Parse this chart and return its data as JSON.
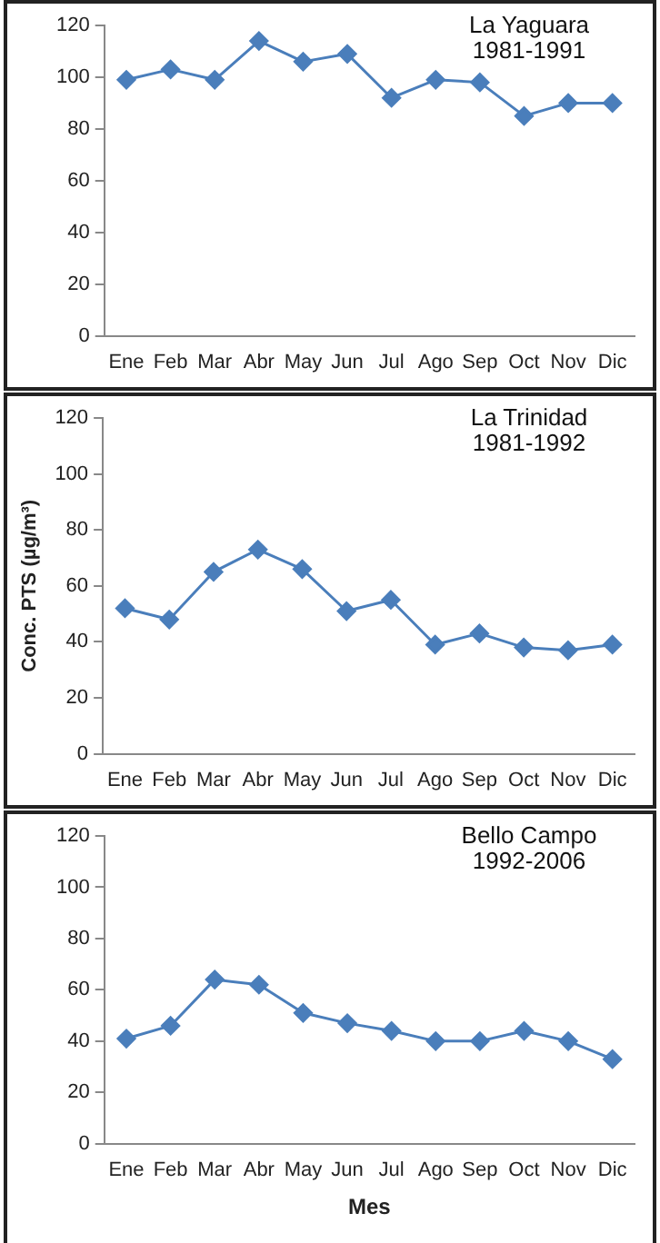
{
  "chart_data": [
    {
      "type": "line",
      "categories": [
        "Ene",
        "Feb",
        "Mar",
        "Abr",
        "May",
        "Jun",
        "Jul",
        "Ago",
        "Sep",
        "Oct",
        "Nov",
        "Dic"
      ],
      "series": [
        {
          "color": "#4a7ebb",
          "values": [
            99,
            103,
            99,
            114,
            106,
            109,
            92,
            99,
            98,
            85,
            90,
            90
          ]
        }
      ],
      "ylim": [
        0,
        120
      ],
      "yticks": [
        0,
        20,
        40,
        60,
        80,
        100,
        120
      ],
      "grid": false,
      "legend": false,
      "marker": "diamond",
      "line_style": "solid",
      "annotations": [
        "La Yaguara",
        "1981-1991"
      ]
    },
    {
      "type": "line",
      "categories": [
        "Ene",
        "Feb",
        "Mar",
        "Abr",
        "May",
        "Jun",
        "Jul",
        "Ago",
        "Sep",
        "Oct",
        "Nov",
        "Dic"
      ],
      "series": [
        {
          "color": "#4a7ebb",
          "values": [
            52,
            48,
            65,
            73,
            66,
            51,
            55,
            39,
            43,
            38,
            37,
            39
          ]
        }
      ],
      "ylim": [
        0,
        120
      ],
      "yticks": [
        0,
        20,
        40,
        60,
        80,
        100,
        120
      ],
      "ylabel": "Conc. PTS (µg/m³)",
      "grid": false,
      "legend": false,
      "marker": "diamond",
      "line_style": "solid",
      "annotations": [
        "La Trinidad",
        "1981-1992"
      ]
    },
    {
      "type": "line",
      "categories": [
        "Ene",
        "Feb",
        "Mar",
        "Abr",
        "May",
        "Jun",
        "Jul",
        "Ago",
        "Sep",
        "Oct",
        "Nov",
        "Dic"
      ],
      "series": [
        {
          "color": "#4a7ebb",
          "values": [
            41,
            46,
            64,
            62,
            51,
            47,
            44,
            40,
            40,
            44,
            40,
            33
          ]
        }
      ],
      "ylim": [
        0,
        120
      ],
      "yticks": [
        0,
        20,
        40,
        60,
        80,
        100,
        120
      ],
      "xlabel": "Mes",
      "grid": false,
      "legend": false,
      "marker": "diamond",
      "line_style": "solid",
      "annotations": [
        "Bello Campo",
        "1992-2006"
      ]
    }
  ]
}
